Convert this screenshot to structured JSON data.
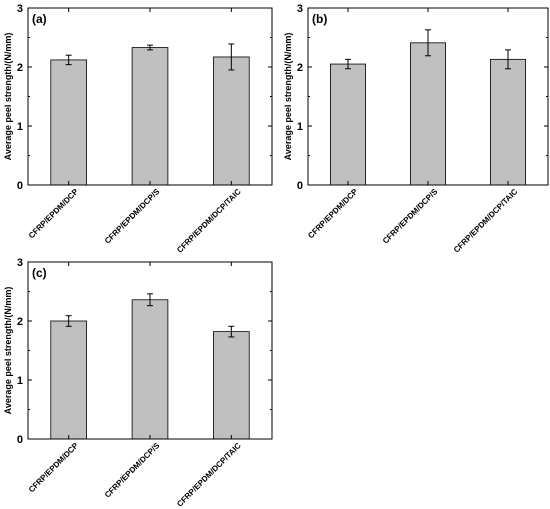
{
  "figure": {
    "colors": {
      "bar_fill": "#c0c0c0",
      "bar_stroke": "#000000",
      "axis": "#000000",
      "background": "#ffffff"
    }
  },
  "chart_data": [
    {
      "type": "bar",
      "panel_label": "(a)",
      "categories": [
        "CFRP/EPDM/DCP",
        "CFRP/EPDM/DCP/S",
        "CFRP/EPDM/DCP/TAIC"
      ],
      "values": [
        2.12,
        2.33,
        2.17
      ],
      "errors": [
        0.08,
        0.04,
        0.22
      ],
      "ylabel": "Average peel strength/(N/mm)",
      "ylim": [
        0,
        3
      ],
      "yticks": [
        0,
        1,
        2,
        3
      ],
      "grid": false,
      "legend": "none"
    },
    {
      "type": "bar",
      "panel_label": "(b)",
      "categories": [
        "CFRP/EPDM/DCP",
        "CFRP/EPDM/DCP/S",
        "CFRP/EPDM/DCP/TAIC"
      ],
      "values": [
        2.05,
        2.41,
        2.13
      ],
      "errors": [
        0.08,
        0.22,
        0.16
      ],
      "ylabel": "Average peel strength/(N/mm)",
      "ylim": [
        0,
        3
      ],
      "yticks": [
        0,
        1,
        2,
        3
      ],
      "grid": false,
      "legend": "none"
    },
    {
      "type": "bar",
      "panel_label": "(c)",
      "categories": [
        "CFRP/EPDM/DCP",
        "CFRP/EPDM/DCP/S",
        "CFRP/EPDM/DCP/TAIC"
      ],
      "values": [
        2.0,
        2.36,
        1.82
      ],
      "errors": [
        0.09,
        0.1,
        0.09
      ],
      "ylabel": "Average peel strength/(N/mm)",
      "ylim": [
        0,
        3
      ],
      "yticks": [
        0,
        1,
        2,
        3
      ],
      "grid": false,
      "legend": "none"
    }
  ]
}
